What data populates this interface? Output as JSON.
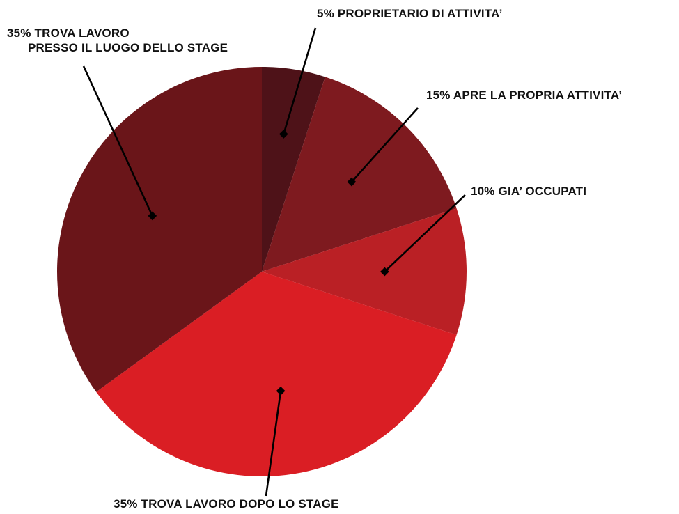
{
  "chart_data": {
    "type": "pie",
    "title": "",
    "slices": [
      {
        "label": "5% PROPRIETARIO DI ATTIVITA’",
        "value": 5,
        "color": "#4E1218"
      },
      {
        "label": "15% APRE LA PROPRIA ATTIVITA’",
        "value": 15,
        "color": "#7E1A1F"
      },
      {
        "label": "10% GIA’ OCCUPATI",
        "value": 10,
        "color": "#BA2025"
      },
      {
        "label": "35% TROVA LAVORO DOPO LO STAGE",
        "value": 35,
        "color": "#DA1E24"
      },
      {
        "label": "35% TROVA LAVORO PRESSO IL LUOGO DELLO STAGE",
        "value": 35,
        "color": "#6A1519"
      }
    ],
    "label_lines": [
      [
        "5% PROPRIETARIO DI ATTIVITA’"
      ],
      [
        "15% APRE LA PROPRIA ATTIVITA’"
      ],
      [
        "10% GIA’ OCCUPATI"
      ],
      [
        "35% TROVA LAVORO DOPO LO STAGE"
      ],
      [
        "35% TROVA LAVORO",
        "PRESSO IL LUOGO DELLO STAGE"
      ]
    ],
    "start_angle": "12 o'clock",
    "direction": "clockwise",
    "legend": "none (labels with leader lines)"
  }
}
